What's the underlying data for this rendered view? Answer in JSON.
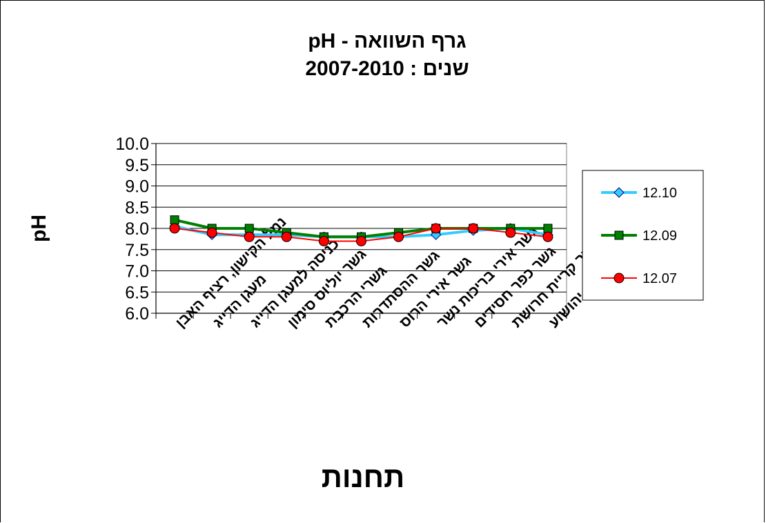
{
  "chart_data": {
    "type": "line",
    "title": "גרף השוואה -  pH",
    "subtitle": "שנים  : 2007-2010",
    "xlabel": "תחנות",
    "ylabel": "pH",
    "ylim": [
      6.0,
      10.0
    ],
    "ytick_step": 0.5,
    "yticks": [
      "10.0",
      "9.5",
      "9.0",
      "8.5",
      "8.0",
      "7.5",
      "7.0",
      "6.5",
      "6.0"
    ],
    "grid": "horizontal",
    "legend_position": "right",
    "categories": [
      "נמל הקישון,  רציף האבן",
      "מעגן הדייג",
      "כניסה למעגן הדייג",
      "גשר יוליוס סימון",
      "גשרי הרכבת",
      "גשר ההסתדרות",
      "גשר אירי הרוס",
      "גשר אירי בריכות נשר",
      "גשר כפר חסידים",
      "גשר קריית חרושת",
      "גשר כפר יהושוע"
    ],
    "series": [
      {
        "name": "12.10",
        "color": "#33CCFF",
        "marker": "diamond",
        "values": [
          8.05,
          7.85,
          7.85,
          7.85,
          7.8,
          7.8,
          7.8,
          7.85,
          7.95,
          8.0,
          7.85
        ]
      },
      {
        "name": "12.09",
        "color": "#008000",
        "marker": "square",
        "values": [
          8.2,
          8.0,
          8.0,
          7.9,
          7.8,
          7.8,
          7.9,
          8.0,
          8.0,
          8.0,
          8.0
        ]
      },
      {
        "name": "12.07",
        "color": "#FF0000",
        "marker": "circle",
        "values": [
          8.0,
          7.9,
          7.8,
          7.8,
          7.7,
          7.7,
          7.8,
          8.0,
          8.0,
          7.9,
          7.8
        ]
      }
    ]
  }
}
